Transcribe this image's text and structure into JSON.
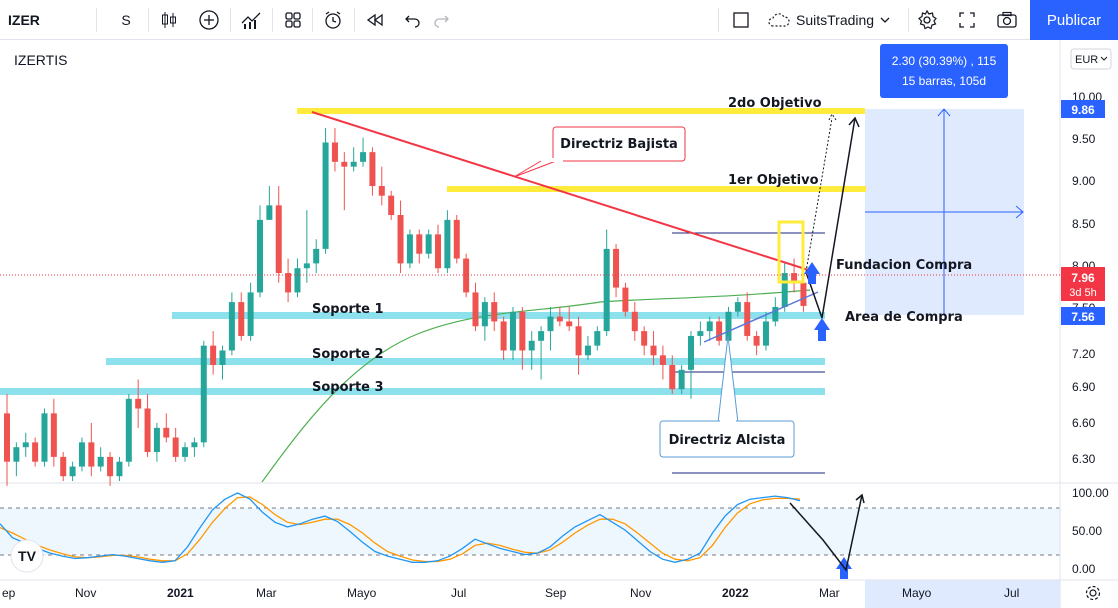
{
  "toolbar": {
    "symbol": "IZER",
    "interval": "S",
    "layout_name": "SuitsTrading",
    "publish_label": "Publicar",
    "icons": [
      "candles-icon",
      "add-indicator-icon",
      "indicators-icon",
      "templates-icon",
      "alert-icon",
      "replay-icon",
      "undo-icon",
      "redo-icon",
      "square-icon",
      "settings-icon",
      "fullscreen-icon",
      "camera-icon"
    ]
  },
  "chart": {
    "symbol_label": "IZERTIS",
    "currency": "EUR",
    "price_ticks": [
      "10.00",
      "9.50",
      "9.00",
      "8.50",
      "8.00",
      "7.50",
      "7.20",
      "6.90",
      "6.60",
      "6.30"
    ],
    "osc_ticks": [
      "100.00",
      "50.00",
      "0.00"
    ],
    "time_labels": [
      "ep",
      "Nov",
      "2021",
      "Mar",
      "Mayo",
      "Jul",
      "Sep",
      "Nov",
      "2022",
      "Mar",
      "Mayo",
      "Jul"
    ],
    "price_badges": [
      {
        "value": "9.86",
        "color": "#2962ff"
      },
      {
        "value": "7.96",
        "sub": "3d 5h",
        "color": "#f23645"
      },
      {
        "value": "7.56",
        "color": "#2962ff"
      }
    ],
    "measure_label_line1": "2.30 (30.39%) , 115",
    "measure_label_line2": "15 barras, 105d",
    "annotations": {
      "objetivo2": "2do Objetivo",
      "objetivo1": "1er Objetivo",
      "directriz_bajista": "Directriz Bajista",
      "fundacion_compra": "Fundacion Compra",
      "area_compra": "Area de Compra",
      "soporte1": "Soporte 1",
      "soporte2": "Soporte 2",
      "soporte3": "Soporte 3",
      "directriz_alcista": "Directriz Alcista"
    },
    "logo": "TV",
    "colors": {
      "up": "#26a69a",
      "down": "#ef5350",
      "yellow_line": "#ffeb3b",
      "support": "#80deea",
      "trend_down": "#f23645",
      "trend_up": "#5b78d8",
      "ma": "#4caf50",
      "stoch_k": "#2196f3",
      "stoch_d": "#ff9800",
      "accent": "#2962ff"
    }
  },
  "chart_data": {
    "type": "candlestick",
    "series": [
      {
        "ohlc": [
          [
            6.85,
            7.05,
            6.1,
            6.35
          ],
          [
            6.35,
            6.55,
            6.2,
            6.5
          ],
          [
            6.5,
            6.65,
            6.4,
            6.55
          ],
          [
            6.55,
            6.6,
            6.3,
            6.35
          ],
          [
            6.35,
            6.9,
            6.3,
            6.85
          ],
          [
            6.85,
            7.0,
            6.3,
            6.4
          ],
          [
            6.4,
            6.45,
            6.15,
            6.2
          ],
          [
            6.2,
            6.35,
            6.15,
            6.3
          ],
          [
            6.3,
            6.6,
            6.25,
            6.55
          ],
          [
            6.55,
            6.75,
            6.2,
            6.3
          ],
          [
            6.3,
            6.5,
            6.25,
            6.4
          ],
          [
            6.4,
            6.45,
            6.1,
            6.2
          ],
          [
            6.2,
            6.4,
            6.15,
            6.35
          ],
          [
            6.35,
            7.05,
            6.3,
            7.0
          ],
          [
            7.0,
            7.2,
            6.7,
            6.9
          ],
          [
            6.9,
            7.05,
            6.4,
            6.45
          ],
          [
            6.45,
            6.75,
            6.35,
            6.7
          ],
          [
            6.7,
            6.85,
            6.55,
            6.6
          ],
          [
            6.6,
            6.7,
            6.35,
            6.4
          ],
          [
            6.4,
            6.55,
            6.35,
            6.5
          ],
          [
            6.5,
            6.6,
            6.4,
            6.55
          ],
          [
            6.55,
            7.6,
            6.5,
            7.55
          ],
          [
            7.55,
            7.7,
            7.25,
            7.35
          ],
          [
            7.35,
            7.55,
            7.2,
            7.5
          ],
          [
            7.5,
            8.1,
            7.45,
            8.0
          ],
          [
            8.0,
            8.1,
            7.6,
            7.65
          ],
          [
            7.65,
            8.2,
            7.6,
            8.1
          ],
          [
            8.1,
            9.0,
            8.05,
            8.85
          ],
          [
            8.85,
            9.2,
            8.85,
            9.0
          ],
          [
            9.0,
            9.2,
            8.2,
            8.3
          ],
          [
            8.3,
            8.45,
            8.0,
            8.1
          ],
          [
            8.1,
            8.45,
            8.05,
            8.35
          ],
          [
            8.35,
            8.95,
            8.2,
            8.4
          ],
          [
            8.4,
            8.65,
            8.3,
            8.55
          ],
          [
            8.55,
            9.8,
            8.5,
            9.65
          ],
          [
            9.65,
            9.8,
            9.35,
            9.45
          ],
          [
            9.45,
            9.55,
            8.95,
            9.4
          ],
          [
            9.4,
            9.6,
            9.35,
            9.45
          ],
          [
            9.45,
            9.7,
            9.4,
            9.55
          ],
          [
            9.55,
            9.6,
            9.1,
            9.2
          ],
          [
            9.2,
            9.4,
            9.0,
            9.1
          ],
          [
            9.1,
            9.15,
            8.85,
            8.9
          ],
          [
            8.9,
            9.05,
            8.3,
            8.4
          ],
          [
            8.4,
            8.75,
            8.35,
            8.7
          ],
          [
            8.7,
            8.75,
            8.4,
            8.5
          ],
          [
            8.5,
            8.75,
            8.45,
            8.7
          ],
          [
            8.7,
            8.8,
            8.3,
            8.35
          ],
          [
            8.35,
            8.95,
            8.3,
            8.85
          ],
          [
            8.85,
            8.9,
            8.4,
            8.45
          ],
          [
            8.45,
            8.5,
            8.05,
            8.1
          ],
          [
            8.1,
            8.2,
            7.7,
            7.75
          ],
          [
            7.75,
            8.05,
            7.6,
            8.0
          ],
          [
            8.0,
            8.1,
            7.7,
            7.8
          ],
          [
            7.8,
            7.85,
            7.4,
            7.5
          ],
          [
            7.5,
            7.95,
            7.4,
            7.9
          ],
          [
            7.9,
            7.95,
            7.3,
            7.5
          ],
          [
            7.5,
            7.7,
            7.3,
            7.6
          ],
          [
            7.6,
            7.75,
            7.2,
            7.7
          ],
          [
            7.7,
            7.95,
            7.5,
            7.85
          ],
          [
            7.85,
            7.95,
            7.75,
            7.8
          ],
          [
            7.8,
            7.95,
            7.7,
            7.75
          ],
          [
            7.75,
            7.85,
            7.25,
            7.45
          ],
          [
            7.45,
            7.65,
            7.4,
            7.55
          ],
          [
            7.55,
            7.75,
            7.5,
            7.7
          ],
          [
            7.7,
            8.75,
            7.65,
            8.55
          ],
          [
            8.55,
            8.6,
            8.05,
            8.15
          ],
          [
            8.15,
            8.2,
            7.85,
            7.9
          ],
          [
            7.9,
            8.0,
            7.6,
            7.7
          ],
          [
            7.7,
            7.75,
            7.45,
            7.55
          ],
          [
            7.55,
            7.7,
            7.35,
            7.45
          ],
          [
            7.45,
            7.55,
            7.2,
            7.35
          ],
          [
            7.35,
            7.45,
            7.05,
            7.1
          ],
          [
            7.1,
            7.35,
            7.05,
            7.3
          ],
          [
            7.3,
            7.7,
            7.0,
            7.65
          ],
          [
            7.65,
            7.8,
            7.55,
            7.7
          ],
          [
            7.7,
            7.85,
            7.6,
            7.8
          ],
          [
            7.8,
            7.85,
            7.55,
            7.6
          ],
          [
            7.6,
            7.95,
            7.55,
            7.9
          ],
          [
            7.9,
            8.05,
            7.85,
            8.0
          ],
          [
            8.0,
            8.1,
            7.6,
            7.65
          ],
          [
            7.65,
            7.7,
            7.45,
            7.55
          ],
          [
            7.55,
            7.9,
            7.5,
            7.8
          ],
          [
            7.8,
            8.05,
            7.75,
            7.95
          ],
          [
            7.95,
            8.4,
            7.9,
            8.3
          ],
          [
            8.3,
            8.45,
            8.1,
            8.2
          ],
          [
            8.2,
            8.25,
            7.9,
            7.96
          ]
        ]
      }
    ],
    "ylim": [
      6.13,
      10.12
    ],
    "stochastic": {
      "k": [
        60,
        42,
        35,
        28,
        22,
        18,
        15,
        16,
        18,
        20,
        18,
        15,
        12,
        10,
        12,
        30,
        55,
        78,
        92,
        100,
        92,
        75,
        62,
        56,
        60,
        66,
        70,
        63,
        50,
        36,
        24,
        18,
        14,
        10,
        10,
        12,
        18,
        28,
        40,
        34,
        28,
        24,
        20,
        22,
        30,
        44,
        56,
        64,
        72,
        62,
        52,
        38,
        24,
        14,
        10,
        14,
        22,
        48,
        70,
        85,
        92,
        94,
        96,
        94,
        90
      ],
      "d": [
        55,
        48,
        40,
        32,
        26,
        21,
        17,
        16,
        17,
        19,
        19,
        17,
        14,
        12,
        12,
        21,
        40,
        62,
        80,
        94,
        95,
        85,
        72,
        62,
        59,
        62,
        66,
        66,
        59,
        48,
        35,
        24,
        18,
        13,
        11,
        11,
        14,
        21,
        32,
        35,
        32,
        27,
        23,
        22,
        26,
        36,
        48,
        58,
        66,
        66,
        60,
        48,
        35,
        22,
        14,
        12,
        16,
        32,
        55,
        74,
        86,
        91,
        93,
        93,
        92
      ],
      "ylim": [
        0,
        100
      ]
    }
  }
}
